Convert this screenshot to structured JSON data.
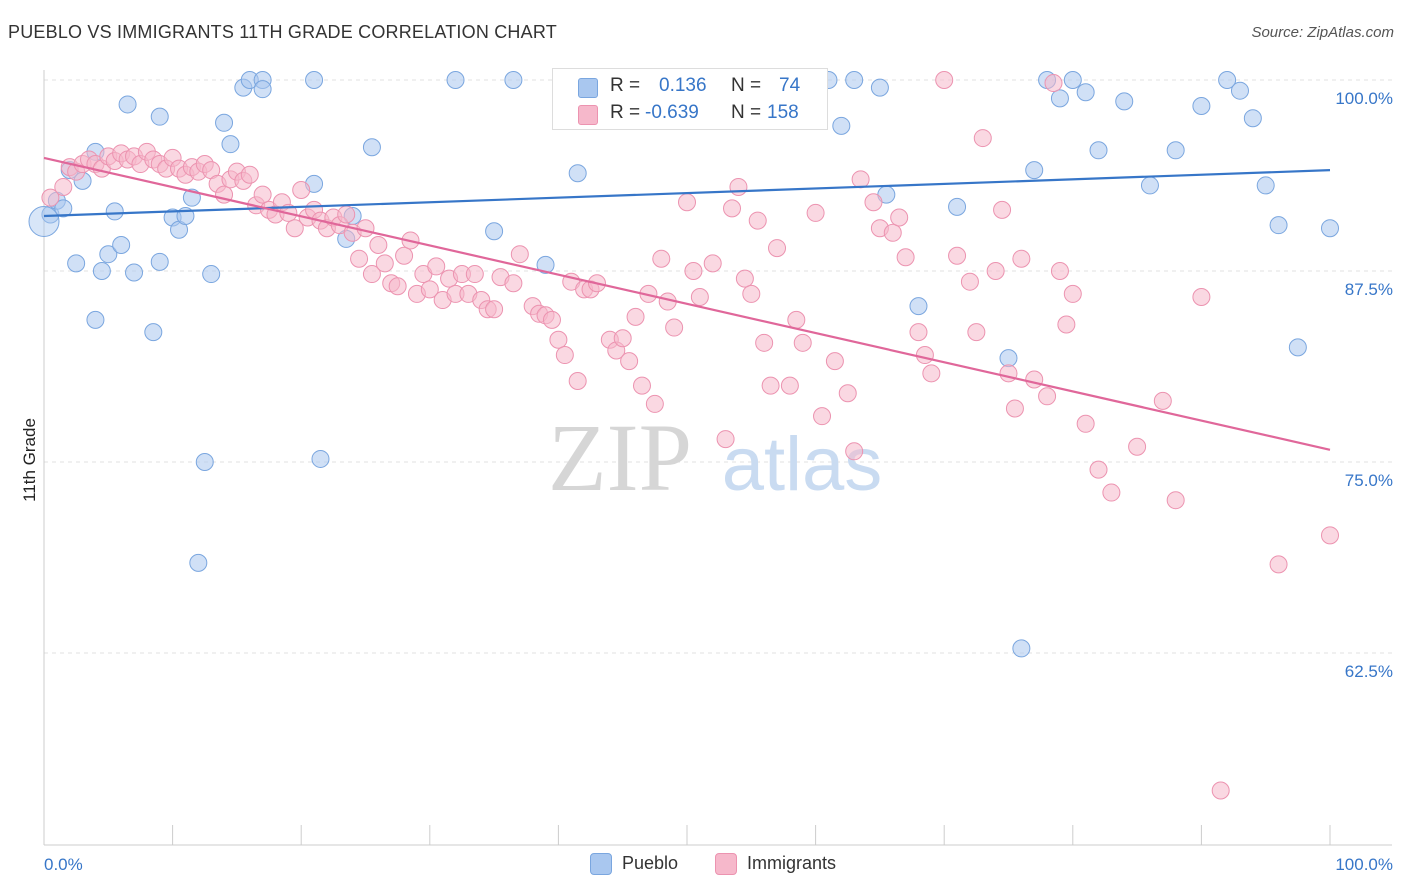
{
  "title": "PUEBLO VS IMMIGRANTS 11TH GRADE CORRELATION CHART",
  "source": "Source: ZipAtlas.com",
  "watermark": {
    "zip": "ZIP",
    "atlas": "atlas"
  },
  "colors": {
    "pueblo_fill": "#a9c7ef",
    "pueblo_stroke": "#7aa6df",
    "pueblo_line": "#3776c8",
    "immigrants_fill": "#f6b8cb",
    "immigrants_stroke": "#ec93b0",
    "immigrants_line": "#e0679a",
    "value_text": "#3776c8",
    "grid": "#e2e2e2"
  },
  "legend": {
    "rows": [
      {
        "r_label": "R =",
        "r_value": "0.136",
        "n_label": "N =",
        "n_value": "74"
      },
      {
        "r_label": "R =",
        "r_value": "-0.639",
        "n_label": "N =",
        "n_value": "158"
      }
    ]
  },
  "bottom_legend": [
    "Pueblo",
    "Immigrants"
  ],
  "chart_data": {
    "type": "scatter",
    "xlabel": "",
    "ylabel": "11th Grade",
    "x_ticks": [
      "0.0%",
      "100.0%"
    ],
    "y_ticks": [
      "100.0%",
      "87.5%",
      "75.0%",
      "62.5%"
    ],
    "xlim": [
      0,
      100
    ],
    "ylim": [
      50.5,
      101.5
    ],
    "grid": "horizontal dashed",
    "legend_placement": "top-center",
    "series": [
      {
        "name": "Pueblo",
        "trend": {
          "x": [
            0,
            100
          ],
          "y": [
            91.1,
            94.1
          ]
        },
        "points": [
          [
            0.5,
            91.2
          ],
          [
            1.0,
            92.1
          ],
          [
            1.5,
            91.6
          ],
          [
            2.0,
            94.1
          ],
          [
            3.0,
            93.4
          ],
          [
            4.0,
            95.3
          ],
          [
            2.5,
            88.0
          ],
          [
            4.0,
            84.3
          ],
          [
            4.5,
            87.5
          ],
          [
            5.0,
            88.6
          ],
          [
            5.5,
            91.4
          ],
          [
            6.0,
            89.2
          ],
          [
            6.5,
            98.4
          ],
          [
            7.0,
            87.4
          ],
          [
            8.5,
            83.5
          ],
          [
            9.0,
            88.1
          ],
          [
            9.0,
            97.6
          ],
          [
            10.0,
            91.0
          ],
          [
            10.5,
            90.2
          ],
          [
            11.0,
            91.1
          ],
          [
            11.5,
            92.3
          ],
          [
            12.5,
            75.0
          ],
          [
            12.0,
            68.4
          ],
          [
            13.0,
            87.3
          ],
          [
            14.0,
            97.2
          ],
          [
            14.5,
            95.8
          ],
          [
            15.5,
            99.5
          ],
          [
            16.0,
            100.0
          ],
          [
            17.0,
            100.0
          ],
          [
            17.0,
            99.4
          ],
          [
            21.0,
            100.0
          ],
          [
            21.5,
            75.2
          ],
          [
            21.0,
            93.2
          ],
          [
            23.5,
            89.6
          ],
          [
            24.0,
            91.1
          ],
          [
            25.5,
            95.6
          ],
          [
            32.0,
            100.0
          ],
          [
            35.0,
            90.1
          ],
          [
            36.5,
            100.0
          ],
          [
            39.0,
            87.9
          ],
          [
            41.5,
            93.9
          ],
          [
            46.0,
            100.0
          ],
          [
            47.0,
            100.0
          ],
          [
            51.5,
            100.0
          ],
          [
            54.0,
            100.0
          ],
          [
            56.5,
            100.0
          ],
          [
            58.0,
            100.0
          ],
          [
            60.0,
            100.0
          ],
          [
            61.0,
            100.0
          ],
          [
            63.0,
            100.0
          ],
          [
            65.0,
            99.5
          ],
          [
            62.0,
            97.0
          ],
          [
            65.5,
            92.5
          ],
          [
            68.0,
            85.2
          ],
          [
            71.0,
            91.7
          ],
          [
            75.0,
            81.8
          ],
          [
            76.0,
            62.8
          ],
          [
            77.0,
            94.1
          ],
          [
            78.0,
            100.0
          ],
          [
            79.0,
            98.8
          ],
          [
            80.0,
            100.0
          ],
          [
            81.0,
            99.2
          ],
          [
            82.0,
            95.4
          ],
          [
            84.0,
            98.6
          ],
          [
            86.0,
            93.1
          ],
          [
            88.0,
            95.4
          ],
          [
            90.0,
            98.3
          ],
          [
            92.0,
            100.0
          ],
          [
            93.0,
            99.3
          ],
          [
            94.0,
            97.5
          ],
          [
            95.0,
            93.1
          ],
          [
            96.0,
            90.5
          ],
          [
            97.5,
            82.5
          ],
          [
            100.0,
            90.3
          ]
        ]
      },
      {
        "name": "Immigrants",
        "trend": {
          "x": [
            0,
            100
          ],
          "y": [
            94.9,
            75.8
          ]
        },
        "points": [
          [
            0.5,
            92.3
          ],
          [
            1.5,
            93.0
          ],
          [
            2.0,
            94.3
          ],
          [
            2.5,
            94.0
          ],
          [
            3.0,
            94.5
          ],
          [
            3.5,
            94.8
          ],
          [
            4.0,
            94.5
          ],
          [
            4.5,
            94.2
          ],
          [
            5.0,
            95.0
          ],
          [
            5.5,
            94.7
          ],
          [
            6.0,
            95.2
          ],
          [
            6.5,
            94.8
          ],
          [
            7.0,
            95.0
          ],
          [
            7.5,
            94.5
          ],
          [
            8.0,
            95.3
          ],
          [
            8.5,
            94.8
          ],
          [
            9.0,
            94.5
          ],
          [
            9.5,
            94.2
          ],
          [
            10.0,
            94.9
          ],
          [
            10.5,
            94.2
          ],
          [
            11.0,
            93.8
          ],
          [
            11.5,
            94.3
          ],
          [
            12.0,
            94.0
          ],
          [
            12.5,
            94.5
          ],
          [
            13.0,
            94.1
          ],
          [
            13.5,
            93.2
          ],
          [
            14.0,
            92.5
          ],
          [
            14.5,
            93.5
          ],
          [
            15.0,
            94.0
          ],
          [
            15.5,
            93.4
          ],
          [
            16.0,
            93.8
          ],
          [
            16.5,
            91.8
          ],
          [
            17.0,
            92.5
          ],
          [
            17.5,
            91.5
          ],
          [
            18.0,
            91.2
          ],
          [
            18.5,
            92.0
          ],
          [
            19.0,
            91.3
          ],
          [
            19.5,
            90.3
          ],
          [
            20.0,
            92.8
          ],
          [
            20.5,
            91.0
          ],
          [
            21.0,
            91.5
          ],
          [
            21.5,
            90.8
          ],
          [
            22.0,
            90.3
          ],
          [
            22.5,
            91.0
          ],
          [
            23.0,
            90.5
          ],
          [
            23.5,
            91.2
          ],
          [
            24.0,
            90.0
          ],
          [
            24.5,
            88.3
          ],
          [
            25.0,
            90.3
          ],
          [
            25.5,
            87.3
          ],
          [
            26.0,
            89.2
          ],
          [
            26.5,
            88.0
          ],
          [
            27.0,
            86.7
          ],
          [
            27.5,
            86.5
          ],
          [
            28.0,
            88.5
          ],
          [
            28.5,
            89.5
          ],
          [
            29.0,
            86.0
          ],
          [
            29.5,
            87.3
          ],
          [
            30.0,
            86.3
          ],
          [
            30.5,
            87.8
          ],
          [
            31.0,
            85.6
          ],
          [
            31.5,
            87.0
          ],
          [
            32.0,
            86.0
          ],
          [
            32.5,
            87.3
          ],
          [
            33.0,
            86.0
          ],
          [
            33.5,
            87.3
          ],
          [
            34.0,
            85.6
          ],
          [
            34.5,
            85.0
          ],
          [
            35.0,
            85.0
          ],
          [
            35.5,
            87.1
          ],
          [
            36.5,
            86.7
          ],
          [
            37.0,
            88.6
          ],
          [
            38.0,
            85.2
          ],
          [
            38.5,
            84.7
          ],
          [
            39.0,
            84.6
          ],
          [
            39.5,
            84.3
          ],
          [
            40.0,
            83.0
          ],
          [
            40.5,
            82.0
          ],
          [
            41.0,
            86.8
          ],
          [
            41.5,
            80.3
          ],
          [
            42.0,
            86.3
          ],
          [
            42.5,
            86.3
          ],
          [
            43.0,
            86.7
          ],
          [
            44.0,
            83.0
          ],
          [
            44.5,
            82.3
          ],
          [
            45.0,
            83.1
          ],
          [
            45.5,
            81.6
          ],
          [
            46.0,
            84.5
          ],
          [
            46.5,
            80.0
          ],
          [
            47.0,
            86.0
          ],
          [
            47.5,
            78.8
          ],
          [
            48.0,
            88.3
          ],
          [
            48.5,
            85.5
          ],
          [
            49.0,
            83.8
          ],
          [
            50.0,
            92.0
          ],
          [
            50.5,
            87.5
          ],
          [
            51.0,
            85.8
          ],
          [
            52.0,
            88.0
          ],
          [
            53.0,
            76.5
          ],
          [
            53.5,
            91.6
          ],
          [
            54.0,
            93.0
          ],
          [
            54.5,
            87.0
          ],
          [
            55.0,
            86.0
          ],
          [
            55.5,
            90.8
          ],
          [
            56.0,
            82.8
          ],
          [
            56.5,
            80.0
          ],
          [
            57.0,
            89.0
          ],
          [
            58.0,
            80.0
          ],
          [
            58.5,
            84.3
          ],
          [
            59.0,
            82.8
          ],
          [
            60.0,
            91.3
          ],
          [
            60.5,
            78.0
          ],
          [
            61.5,
            81.6
          ],
          [
            62.5,
            79.5
          ],
          [
            63.0,
            75.7
          ],
          [
            63.5,
            93.5
          ],
          [
            64.5,
            92.0
          ],
          [
            65.0,
            90.3
          ],
          [
            66.0,
            90.0
          ],
          [
            66.5,
            91.0
          ],
          [
            67.0,
            88.4
          ],
          [
            68.0,
            83.5
          ],
          [
            68.5,
            82.0
          ],
          [
            69.0,
            80.8
          ],
          [
            70.0,
            100.0
          ],
          [
            71.0,
            88.5
          ],
          [
            72.0,
            86.8
          ],
          [
            72.5,
            83.5
          ],
          [
            73.0,
            96.2
          ],
          [
            74.0,
            87.5
          ],
          [
            74.5,
            91.5
          ],
          [
            75.0,
            80.8
          ],
          [
            75.5,
            78.5
          ],
          [
            76.0,
            88.3
          ],
          [
            77.0,
            80.4
          ],
          [
            78.0,
            79.3
          ],
          [
            78.5,
            99.8
          ],
          [
            79.0,
            87.5
          ],
          [
            79.5,
            84.0
          ],
          [
            80.0,
            86.0
          ],
          [
            81.0,
            77.5
          ],
          [
            82.0,
            74.5
          ],
          [
            83.0,
            73.0
          ],
          [
            85.0,
            76.0
          ],
          [
            87.0,
            79.0
          ],
          [
            88.0,
            72.5
          ],
          [
            90.0,
            85.8
          ],
          [
            91.5,
            53.5
          ],
          [
            96.0,
            68.3
          ],
          [
            100.0,
            70.2
          ]
        ]
      }
    ]
  }
}
